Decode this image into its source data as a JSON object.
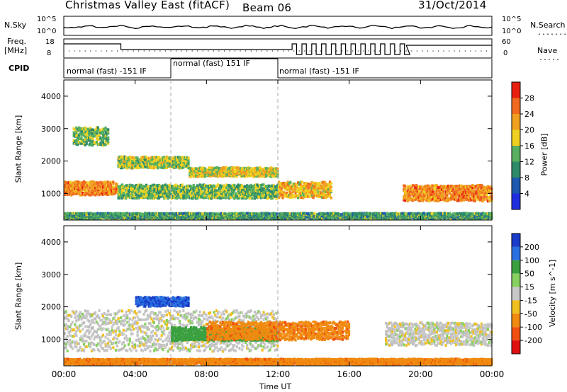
{
  "header": {
    "station": "Christmas Valley East (fitACF)",
    "beam": "Beam 06",
    "date": "31/Oct/2014"
  },
  "top_panels": {
    "nsky_label": "N.Sky",
    "nsky_ticks": [
      "10^5",
      "10^0"
    ],
    "nsearch_label": "N.Search",
    "nsearch_ticks": [
      "10^5",
      "10^0"
    ],
    "freq_label_1": "Freq.",
    "freq_label_2": "[MHz]",
    "freq_ticks": [
      "18",
      "8"
    ],
    "nave_label": "Nave",
    "nave_ticks": [
      "60",
      "0"
    ],
    "cpid_label": "CPID",
    "cpid_segments": [
      {
        "label": "normal (fast) -151 IF",
        "start": 0,
        "end": 6
      },
      {
        "label": "normal (fast) 151 IF",
        "start": 6,
        "end": 12
      },
      {
        "label": "normal (fast) -151 IF",
        "start": 12,
        "end": 24
      }
    ]
  },
  "x_axis": {
    "label": "Time UT",
    "ticks": [
      "00:00",
      "04:00",
      "08:00",
      "12:00",
      "16:00",
      "20:00",
      "00:00"
    ]
  },
  "colors": {
    "power_scale": [
      "#1f2fe0",
      "#1e58b0",
      "#2f8a6a",
      "#58b060",
      "#f0d020",
      "#f0a020",
      "#f06a20",
      "#e82010"
    ],
    "velocity_scale": [
      "#1a3cc8",
      "#2a70e0",
      "#3aa040",
      "#88d060",
      "#c8c8c8",
      "#f0c020",
      "#f08a10",
      "#f05010",
      "#e01010"
    ],
    "ground_scatter": "#c0c0c0"
  },
  "chart_data": [
    {
      "type": "heatmap",
      "title": "",
      "xlabel": "Time UT",
      "ylabel": "Slant Range [km]",
      "xlim": [
        0,
        24
      ],
      "ylim": [
        180,
        4500
      ],
      "y_ticks": [
        "1000",
        "2000",
        "3000",
        "4000"
      ],
      "colorbar": {
        "label": "Power [dB]",
        "ticks": [
          "28",
          "24",
          "20",
          "16",
          "12",
          "8",
          "4"
        ]
      },
      "x_hours": [
        0,
        1,
        2,
        3,
        4,
        5,
        6,
        7,
        8,
        9,
        10,
        11,
        12,
        13,
        14,
        15,
        16,
        17,
        18,
        19,
        20,
        21,
        22,
        23,
        24
      ],
      "features": [
        {
          "name": "main band",
          "x_start": 0,
          "x_end": 3,
          "y_center": 1200,
          "y_width": 300,
          "value": 26
        },
        {
          "name": "main band",
          "x_start": 3,
          "x_end": 7,
          "y_center": 2000,
          "y_width": 250,
          "value": 18
        },
        {
          "name": "main band",
          "x_start": 7,
          "x_end": 12,
          "y_center": 1700,
          "y_width": 200,
          "value": 20
        },
        {
          "name": "lower band",
          "x_start": 3,
          "x_end": 12,
          "y_center": 1100,
          "y_width": 300,
          "value": 16
        },
        {
          "name": "band",
          "x_start": 12,
          "x_end": 15,
          "y_center": 1150,
          "y_width": 350,
          "value": 22
        },
        {
          "name": "band",
          "x_start": 19,
          "x_end": 24,
          "y_center": 1050,
          "y_width": 350,
          "value": 26
        },
        {
          "name": "upper patch",
          "x_start": 0.5,
          "x_end": 2.5,
          "y_center": 2800,
          "y_width": 400,
          "value": 16
        },
        {
          "name": "near range",
          "x_start": 0,
          "x_end": 24,
          "y_center": 350,
          "y_width": 120,
          "value": 14
        }
      ]
    },
    {
      "type": "heatmap",
      "title": "",
      "xlabel": "Time UT",
      "ylabel": "Slant Range [km]",
      "xlim": [
        0,
        24
      ],
      "ylim": [
        180,
        4500
      ],
      "y_ticks": [
        "1000",
        "2000",
        "3000",
        "4000"
      ],
      "colorbar": {
        "label": "Velocity [m s^-1]",
        "ticks": [
          "200",
          "100",
          "50",
          "15",
          "-15",
          "-50",
          "-100",
          "-200"
        ]
      },
      "features": [
        {
          "name": "ground scatter",
          "x_start": 0,
          "x_end": 12,
          "y_center": 1300,
          "y_width": 900,
          "value": 0
        },
        {
          "name": "negative flow",
          "x_start": 4,
          "x_end": 7,
          "y_center": 2200,
          "y_width": 200,
          "value": 150
        },
        {
          "name": "mixed",
          "x_start": 6,
          "x_end": 12,
          "y_center": 1200,
          "y_width": 300,
          "value": 50
        },
        {
          "name": "receding",
          "x_start": 8,
          "x_end": 16,
          "y_center": 1300,
          "y_width": 400,
          "value": -60
        },
        {
          "name": "ground scatter",
          "x_start": 18,
          "x_end": 24,
          "y_center": 1200,
          "y_width": 500,
          "value": 0
        },
        {
          "name": "near range",
          "x_start": 0,
          "x_end": 24,
          "y_center": 350,
          "y_width": 120,
          "value": -60
        }
      ]
    }
  ]
}
